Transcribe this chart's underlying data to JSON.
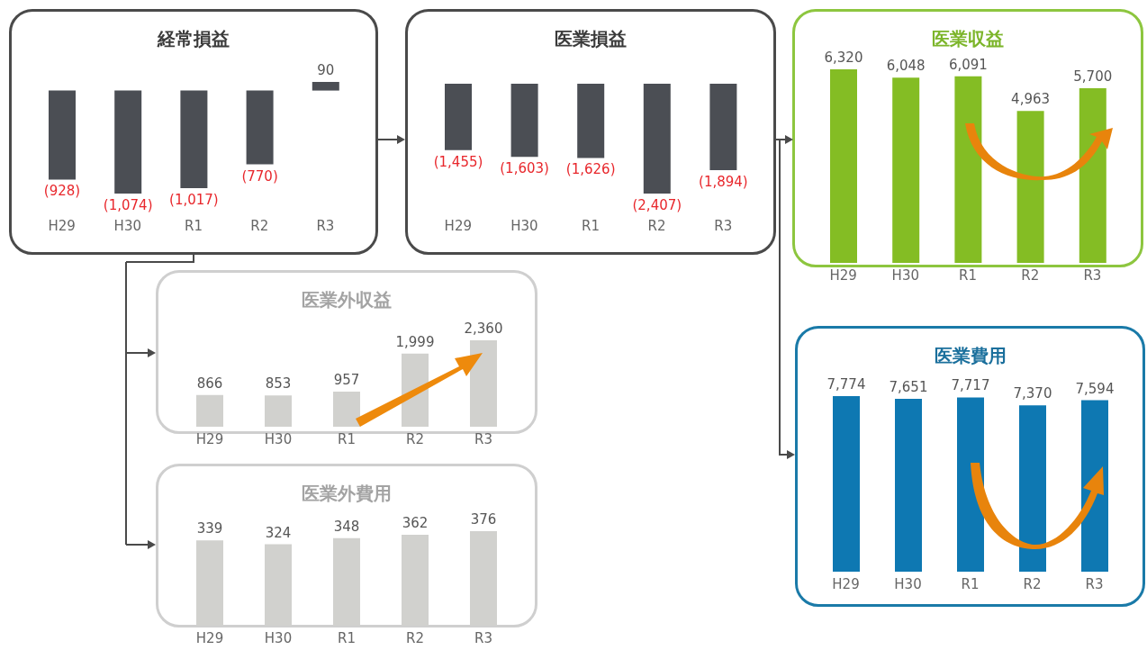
{
  "chart_data": [
    {
      "type": "bar",
      "title": "経常損益",
      "categories": [
        "H29",
        "H30",
        "R1",
        "R2",
        "R3"
      ],
      "values": [
        -928,
        -1074,
        -1017,
        -770,
        90
      ],
      "value_labels": [
        "(928)",
        "(1,074)",
        "(1,017)",
        "(770)",
        "90"
      ],
      "color": "#4b4e54"
    },
    {
      "type": "bar",
      "title": "医業損益",
      "categories": [
        "H29",
        "H30",
        "R1",
        "R2",
        "R3"
      ],
      "values": [
        -1455,
        -1603,
        -1626,
        -2407,
        -1894
      ],
      "value_labels": [
        "(1,455)",
        "(1,603)",
        "(1,626)",
        "(2,407)",
        "(1,894)"
      ],
      "color": "#4b4e54"
    },
    {
      "type": "bar",
      "title": "医業収益",
      "categories": [
        "H29",
        "H30",
        "R1",
        "R2",
        "R3"
      ],
      "values": [
        6320,
        6048,
        6091,
        4963,
        5700
      ],
      "value_labels": [
        "6,320",
        "6,048",
        "6,091",
        "4,963",
        "5,700"
      ],
      "color": "#84bd24"
    },
    {
      "type": "bar",
      "title": "医業外収益",
      "categories": [
        "H29",
        "H30",
        "R1",
        "R2",
        "R3"
      ],
      "values": [
        866,
        853,
        957,
        1999,
        2360
      ],
      "value_labels": [
        "866",
        "853",
        "957",
        "1,999",
        "2,360"
      ],
      "color": "#d1d1ce"
    },
    {
      "type": "bar",
      "title": "医業費用",
      "categories": [
        "H29",
        "H30",
        "R1",
        "R2",
        "R3"
      ],
      "values": [
        7774,
        7651,
        7717,
        7370,
        7594
      ],
      "value_labels": [
        "7,774",
        "7,651",
        "7,717",
        "7,370",
        "7,594"
      ],
      "color": "#0e78b2"
    },
    {
      "type": "bar",
      "title": "医業外費用",
      "categories": [
        "H29",
        "H30",
        "R1",
        "R2",
        "R3"
      ],
      "values": [
        339,
        324,
        348,
        362,
        376
      ],
      "value_labels": [
        "339",
        "324",
        "348",
        "362",
        "376"
      ],
      "color": "#d1d1ce"
    }
  ]
}
